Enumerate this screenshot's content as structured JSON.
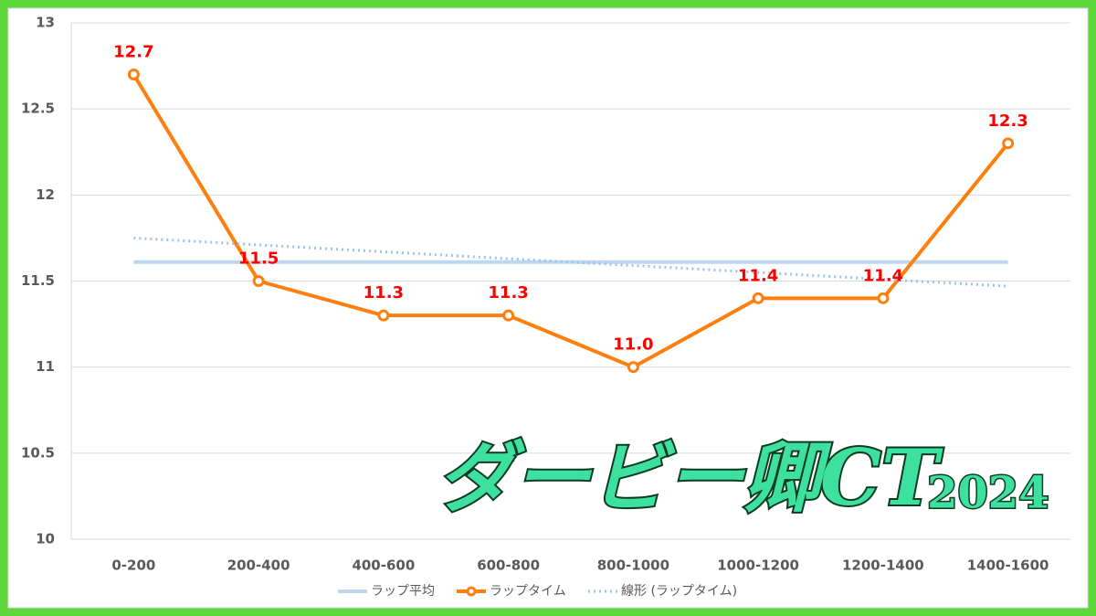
{
  "chart_data": {
    "type": "line",
    "categories": [
      "0-200",
      "200-400",
      "400-600",
      "600-800",
      "800-1000",
      "1000-1200",
      "1200-1400",
      "1400-1600"
    ],
    "series": [
      {
        "name": "ラップ平均",
        "color": "#bdd7ee",
        "style": "solid",
        "values": [
          11.61,
          11.61,
          11.61,
          11.61,
          11.61,
          11.61,
          11.61,
          11.61
        ]
      },
      {
        "name": "ラップタイム",
        "color": "#ff7f0e",
        "style": "solid",
        "marker": true,
        "values": [
          12.7,
          11.5,
          11.3,
          11.3,
          11.0,
          11.4,
          11.4,
          12.3
        ],
        "value_labels": [
          "12.7",
          "11.5",
          "11.3",
          "11.3",
          "11.0",
          "11.4",
          "11.4",
          "12.3"
        ]
      },
      {
        "name": "線形 (ラップタイム)",
        "color": "#9dc3e6",
        "style": "dotted",
        "values": [
          11.75,
          11.71,
          11.67,
          11.63,
          11.59,
          11.55,
          11.51,
          11.47
        ]
      }
    ],
    "ylim": [
      10,
      13
    ],
    "yticks": [
      10,
      10.5,
      11,
      11.5,
      12,
      12.5,
      13
    ],
    "grid": true,
    "legend": "bottom",
    "watermark": "ダービー卿CT",
    "watermark_year": "2024"
  }
}
